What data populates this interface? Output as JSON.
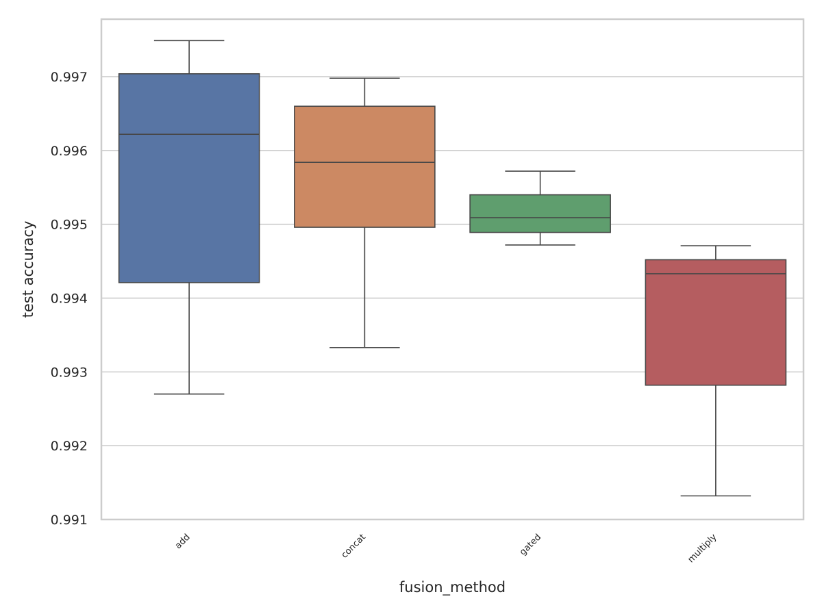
{
  "chart_data": {
    "type": "box",
    "title": "",
    "xlabel": "fusion_method",
    "ylabel": "test accuracy",
    "ylim": [
      0.991,
      0.99778
    ],
    "yticks": [
      0.991,
      0.992,
      0.993,
      0.994,
      0.995,
      0.996,
      0.997
    ],
    "ytick_labels": [
      "0.991",
      "0.992",
      "0.993",
      "0.994",
      "0.995",
      "0.996",
      "0.997"
    ],
    "grid": "horizontal",
    "categories": [
      "add",
      "concat",
      "gated",
      "multiply"
    ],
    "colors": [
      "#5875a4",
      "#cc8963",
      "#5f9e6e",
      "#b55d60"
    ],
    "boxes": [
      {
        "category": "add",
        "whisker_low": 0.9927,
        "q1": 0.99421,
        "median": 0.99622,
        "q3": 0.99704,
        "whisker_high": 0.99749
      },
      {
        "category": "concat",
        "whisker_low": 0.99333,
        "q1": 0.99496,
        "median": 0.99584,
        "q3": 0.9966,
        "whisker_high": 0.99698
      },
      {
        "category": "gated",
        "whisker_low": 0.99472,
        "q1": 0.99489,
        "median": 0.99509,
        "q3": 0.9954,
        "whisker_high": 0.99572
      },
      {
        "category": "multiply",
        "whisker_low": 0.99132,
        "q1": 0.99282,
        "median": 0.99433,
        "q3": 0.99452,
        "whisker_high": 0.99471
      }
    ]
  }
}
